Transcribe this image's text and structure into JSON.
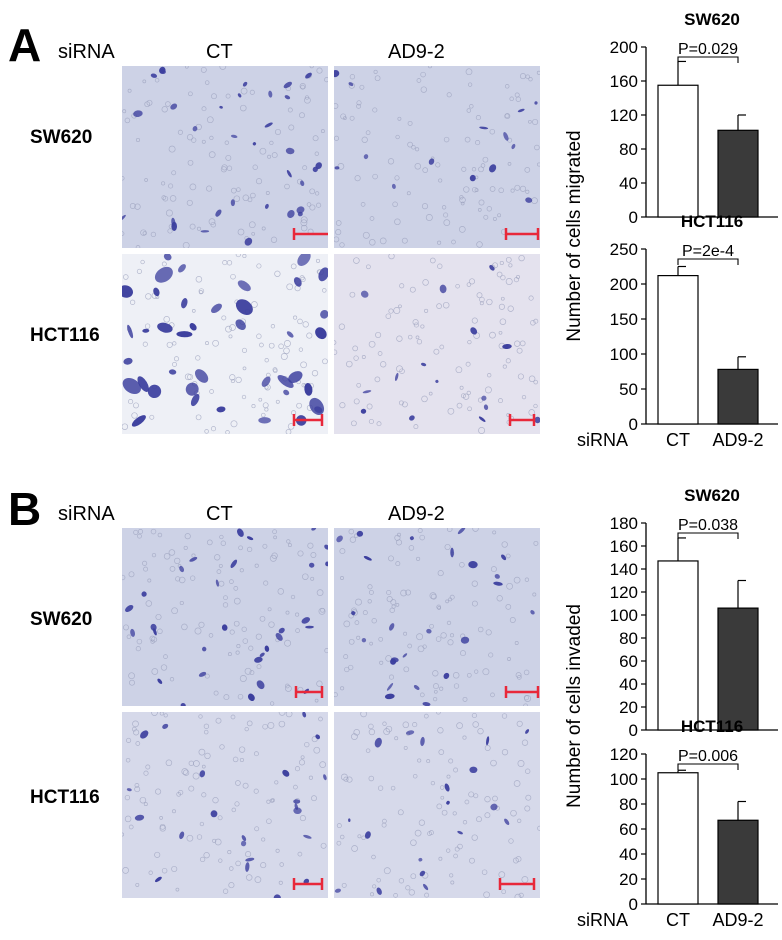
{
  "panels": [
    {
      "letter": "A",
      "row_header_label": "siRNA",
      "columns": [
        "CT",
        "AD9-2"
      ],
      "rows": [
        "SW620",
        "HCT116"
      ],
      "ylabel": "Number of cells migrated",
      "xaxis_label": "siRNA"
    },
    {
      "letter": "B",
      "row_header_label": "siRNA",
      "columns": [
        "CT",
        "AD9-2"
      ],
      "rows": [
        "SW620",
        "HCT116"
      ],
      "ylabel": "Number of cells invaded",
      "xaxis_label": "siRNA"
    }
  ],
  "colors": {
    "ct_bar": "#ffffff",
    "ad92_bar": "#3a3a3a",
    "scale_bar": "#e8283a",
    "micro_bg": "#cdd2e6",
    "micro_bg_light": "#eef0f6",
    "cell_stain": "#3c3f9e"
  },
  "chart_data": [
    {
      "type": "bar",
      "title": "SW620",
      "categories": [
        "CT",
        "AD9-2"
      ],
      "values": [
        155,
        102
      ],
      "errors": [
        28,
        18
      ],
      "ylim": [
        0,
        200
      ],
      "yticks": [
        0,
        40,
        80,
        120,
        160,
        200
      ],
      "annotation": "P=0.029",
      "xlabel": "",
      "ylabel": "Number of cells migrated"
    },
    {
      "type": "bar",
      "title": "HCT116",
      "categories": [
        "CT",
        "AD9-2"
      ],
      "values": [
        212,
        78
      ],
      "errors": [
        13,
        18
      ],
      "ylim": [
        0,
        250
      ],
      "yticks": [
        0,
        50,
        100,
        150,
        200,
        250
      ],
      "annotation": "P=2e-4",
      "xlabel": "siRNA",
      "ylabel": "Number of cells migrated"
    },
    {
      "type": "bar",
      "title": "SW620",
      "categories": [
        "CT",
        "AD9-2"
      ],
      "values": [
        147,
        106
      ],
      "errors": [
        20,
        24
      ],
      "ylim": [
        0,
        180
      ],
      "yticks": [
        0,
        20,
        40,
        60,
        80,
        100,
        120,
        140,
        160,
        180
      ],
      "annotation": "P=0.038",
      "xlabel": "",
      "ylabel": "Number of cells invaded"
    },
    {
      "type": "bar",
      "title": "HCT116",
      "categories": [
        "CT",
        "AD9-2"
      ],
      "values": [
        105,
        67
      ],
      "errors": [
        2,
        15
      ],
      "ylim": [
        0,
        120
      ],
      "yticks": [
        0,
        20,
        40,
        60,
        80,
        100,
        120
      ],
      "annotation": "P=0.006",
      "xlabel": "siRNA",
      "ylabel": "Number of cells invaded"
    }
  ]
}
